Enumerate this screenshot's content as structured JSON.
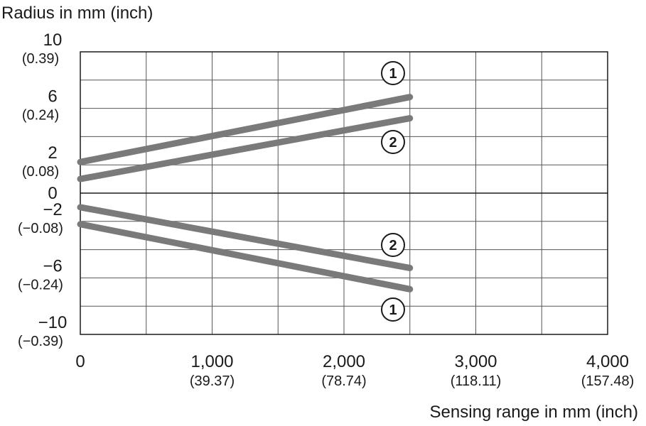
{
  "chart_data": {
    "type": "line",
    "ylabel": "Radius in mm (inch)",
    "xlabel": "Sensing range in mm (inch)",
    "xlim": [
      0,
      4000
    ],
    "ylim": [
      -10,
      10
    ],
    "grid": true,
    "x_ticks": [
      {
        "value": 0,
        "label": "0",
        "sub": ""
      },
      {
        "value": 1000,
        "label": "1,000",
        "sub": "(39.37)"
      },
      {
        "value": 2000,
        "label": "2,000",
        "sub": "(78.74)"
      },
      {
        "value": 3000,
        "label": "3,000",
        "sub": "(118.11)"
      },
      {
        "value": 4000,
        "label": "4,000",
        "sub": "(157.48)"
      }
    ],
    "y_ticks": [
      {
        "value": 10,
        "label": "10",
        "sub": "(0.39)"
      },
      {
        "value": 6,
        "label": "6",
        "sub": "(0.24)"
      },
      {
        "value": 2,
        "label": "2",
        "sub": "(0.08)"
      },
      {
        "value": 0,
        "label": "0",
        "sub": ""
      },
      {
        "value": -2,
        "label": "−2",
        "sub": "(−0.08)"
      },
      {
        "value": -6,
        "label": "−6",
        "sub": "(−0.24)"
      },
      {
        "value": -10,
        "label": "−10",
        "sub": "(−0.39)"
      }
    ],
    "series": [
      {
        "marker": "①",
        "values": [
          [
            0,
            2.2
          ],
          [
            2500,
            6.8
          ]
        ]
      },
      {
        "marker": "①",
        "values": [
          [
            0,
            -2.2
          ],
          [
            2500,
            -6.8
          ]
        ]
      },
      {
        "marker": "②",
        "values": [
          [
            0,
            1.0
          ],
          [
            2500,
            5.3
          ]
        ]
      },
      {
        "marker": "②",
        "values": [
          [
            0,
            -1.0
          ],
          [
            2500,
            -5.3
          ]
        ]
      }
    ],
    "line_color": "#7a7a7a"
  }
}
